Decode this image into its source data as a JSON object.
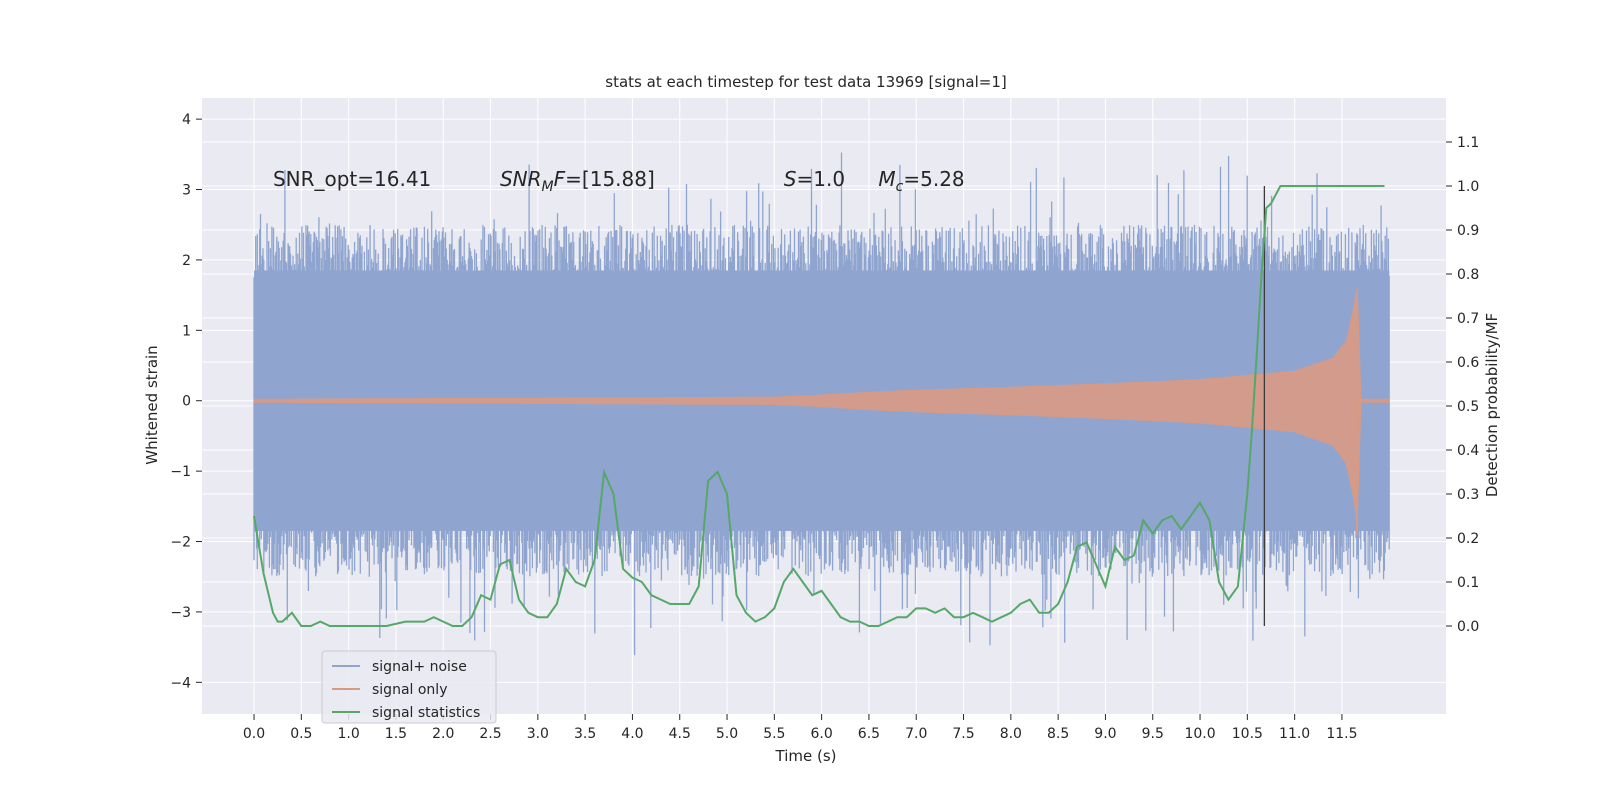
{
  "chart_data": {
    "type": "line",
    "title": "stats at each timestep for test data 13969 [signal=1]",
    "xlabel": "Time (s)",
    "ylabel": "Whitened strain",
    "y2label": "Detection probability/MF",
    "xlim": [
      -0.55,
      12.6
    ],
    "ylim": [
      -4.45,
      4.3
    ],
    "y2lim": [
      -0.2,
      1.2
    ],
    "x_ticks": [
      0.0,
      0.5,
      1.0,
      1.5,
      2.0,
      2.5,
      3.0,
      3.5,
      4.0,
      4.5,
      5.0,
      5.5,
      6.0,
      6.5,
      7.0,
      7.5,
      8.0,
      8.5,
      9.0,
      9.5,
      10.0,
      10.5,
      11.0,
      11.5
    ],
    "x_tick_labels": [
      "0.0",
      "0.5",
      "1.0",
      "1.5",
      "2.0",
      "2.5",
      "3.0",
      "3.5",
      "4.0",
      "4.5",
      "5.0",
      "5.5",
      "6.0",
      "6.5",
      "7.0",
      "7.5",
      "8.0",
      "8.5",
      "9.0",
      "9.5",
      "10.0",
      "10.5",
      "11.0",
      "11.5"
    ],
    "y_ticks": [
      -4,
      -3,
      -2,
      -1,
      0,
      1,
      2,
      3,
      4
    ],
    "y_tick_labels": [
      "−4",
      "−3",
      "−2",
      "−1",
      "0",
      "1",
      "2",
      "3",
      "4"
    ],
    "y2_ticks": [
      0.0,
      0.1,
      0.2,
      0.3,
      0.4,
      0.5,
      0.6,
      0.7,
      0.8,
      0.9,
      1.0,
      1.1
    ],
    "y2_tick_labels": [
      "0.0",
      "0.1",
      "0.2",
      "0.3",
      "0.4",
      "0.5",
      "0.6",
      "0.7",
      "0.8",
      "0.9",
      "1.0",
      "1.1"
    ],
    "grid": true,
    "legend_position": "lower-left",
    "series": [
      {
        "name": "signal+ noise",
        "axis": "left",
        "color": "#8fa5cf",
        "x_range": [
          0.0,
          12.0
        ],
        "typical_range": [
          -1.9,
          1.9
        ],
        "extremes": [
          -4.1,
          3.9
        ]
      },
      {
        "name": "signal only",
        "axis": "left",
        "color": "#d99a83",
        "x_range": [
          0.0,
          12.0
        ],
        "envelope": {
          "x": [
            0.0,
            5.5,
            6.0,
            6.5,
            7.0,
            8.0,
            9.0,
            10.0,
            10.5,
            11.0,
            11.4,
            11.55,
            11.62,
            11.66,
            11.68,
            11.7,
            12.0
          ],
          "amp": [
            0.02,
            0.05,
            0.08,
            0.12,
            0.15,
            0.19,
            0.24,
            0.3,
            0.36,
            0.42,
            0.6,
            0.85,
            1.3,
            1.6,
            0.9,
            0.02,
            0.02
          ]
        }
      },
      {
        "name": "signal statistics",
        "axis": "right",
        "color": "#55a868",
        "x": [
          0.0,
          0.1,
          0.2,
          0.25,
          0.3,
          0.4,
          0.5,
          0.6,
          0.7,
          0.8,
          1.0,
          1.2,
          1.4,
          1.6,
          1.8,
          1.9,
          2.0,
          2.1,
          2.2,
          2.3,
          2.4,
          2.5,
          2.6,
          2.7,
          2.8,
          2.9,
          3.0,
          3.1,
          3.2,
          3.3,
          3.4,
          3.5,
          3.6,
          3.7,
          3.8,
          3.9,
          4.0,
          4.1,
          4.2,
          4.3,
          4.4,
          4.5,
          4.6,
          4.7,
          4.8,
          4.9,
          5.0,
          5.1,
          5.2,
          5.3,
          5.4,
          5.5,
          5.6,
          5.7,
          5.8,
          5.9,
          6.0,
          6.1,
          6.2,
          6.3,
          6.4,
          6.5,
          6.6,
          6.7,
          6.8,
          6.9,
          7.0,
          7.1,
          7.2,
          7.3,
          7.4,
          7.5,
          7.6,
          7.7,
          7.8,
          7.9,
          8.0,
          8.1,
          8.2,
          8.3,
          8.4,
          8.5,
          8.6,
          8.7,
          8.8,
          8.9,
          9.0,
          9.1,
          9.2,
          9.3,
          9.4,
          9.5,
          9.6,
          9.7,
          9.8,
          9.9,
          10.0,
          10.1,
          10.2,
          10.3,
          10.4,
          10.5,
          10.55,
          10.6,
          10.65,
          10.7,
          10.75,
          10.8,
          10.85,
          10.9,
          11.0,
          11.2,
          11.5,
          11.8,
          11.95
        ],
        "values": [
          0.25,
          0.12,
          0.03,
          0.01,
          0.01,
          0.03,
          0.0,
          0.0,
          0.01,
          0.0,
          0.0,
          0.0,
          0.0,
          0.01,
          0.01,
          0.02,
          0.01,
          0.0,
          0.0,
          0.02,
          0.07,
          0.06,
          0.14,
          0.15,
          0.06,
          0.03,
          0.02,
          0.02,
          0.05,
          0.13,
          0.1,
          0.09,
          0.15,
          0.35,
          0.3,
          0.13,
          0.11,
          0.1,
          0.07,
          0.06,
          0.05,
          0.05,
          0.05,
          0.09,
          0.33,
          0.35,
          0.3,
          0.07,
          0.03,
          0.01,
          0.02,
          0.04,
          0.1,
          0.13,
          0.1,
          0.07,
          0.08,
          0.05,
          0.02,
          0.01,
          0.01,
          0.0,
          0.0,
          0.01,
          0.02,
          0.02,
          0.04,
          0.04,
          0.03,
          0.04,
          0.02,
          0.02,
          0.03,
          0.02,
          0.01,
          0.02,
          0.03,
          0.05,
          0.06,
          0.03,
          0.03,
          0.05,
          0.1,
          0.18,
          0.19,
          0.14,
          0.09,
          0.18,
          0.15,
          0.16,
          0.24,
          0.21,
          0.24,
          0.25,
          0.22,
          0.25,
          0.28,
          0.24,
          0.1,
          0.06,
          0.09,
          0.3,
          0.45,
          0.62,
          0.8,
          0.95,
          0.96,
          0.98,
          1.0,
          1.0,
          1.0,
          1.0,
          1.0,
          1.0,
          1.0
        ]
      }
    ],
    "vertical_line": {
      "x": 10.68,
      "y_from": -3.2,
      "y_to": 3.05,
      "color": "#3b3b3b"
    },
    "annotations": [
      {
        "x": 0.2,
        "y": 3.05,
        "text": "SNR_opt=16.41",
        "style": "normal"
      },
      {
        "x": 2.6,
        "y": 3.05,
        "text": "SNR",
        "sub": "M",
        "after": "F=[15.88]",
        "style": "italic-prefix"
      },
      {
        "x": 5.6,
        "y": 3.05,
        "text": "S",
        "sub": "",
        "after": "=1.0",
        "style": "italic-prefix"
      },
      {
        "x": 6.6,
        "y": 3.05,
        "text": "M",
        "sub": "c",
        "after": "=5.28",
        "style": "italic-prefix"
      }
    ],
    "colors": {
      "plot_background": "#eaeaf2",
      "grid": "#ffffff",
      "text": "#262626"
    }
  }
}
